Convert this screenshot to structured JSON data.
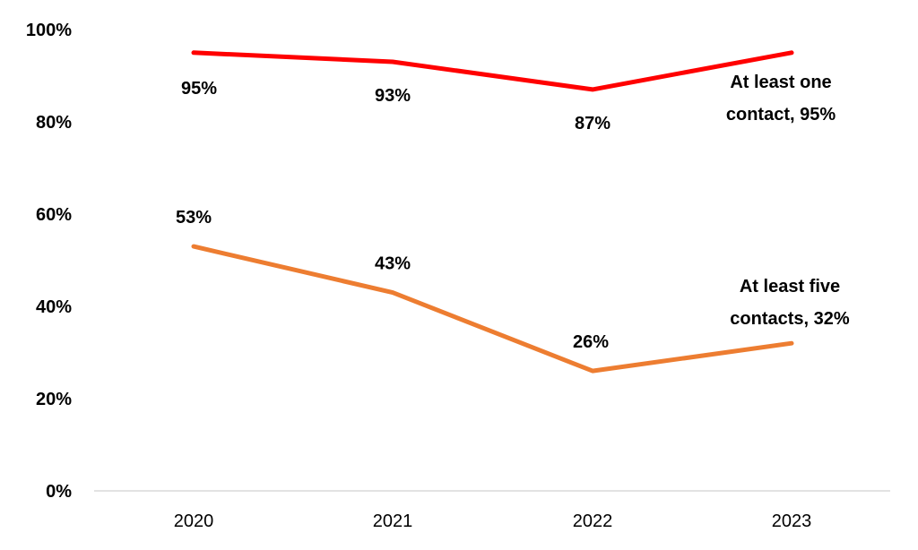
{
  "chart_data": {
    "type": "line",
    "categories": [
      "2020",
      "2021",
      "2022",
      "2023"
    ],
    "ylim": [
      0,
      100
    ],
    "yticks": [
      "0%",
      "20%",
      "40%",
      "60%",
      "80%",
      "100%"
    ],
    "grid": false,
    "legend": "none",
    "series": [
      {
        "name": "At least one contact",
        "label_lines": [
          "At least one",
          "contact, 95%"
        ],
        "color": "#ff0000",
        "values": [
          95,
          93,
          87,
          95
        ],
        "data_labels": [
          "95%",
          "93%",
          "87%",
          ""
        ]
      },
      {
        "name": "At least five contacts",
        "label_lines": [
          "At least five",
          "contacts, 32%"
        ],
        "color": "#ed7d31",
        "values": [
          53,
          43,
          26,
          32
        ],
        "data_labels": [
          "53%",
          "43%",
          "26%",
          ""
        ]
      }
    ]
  }
}
